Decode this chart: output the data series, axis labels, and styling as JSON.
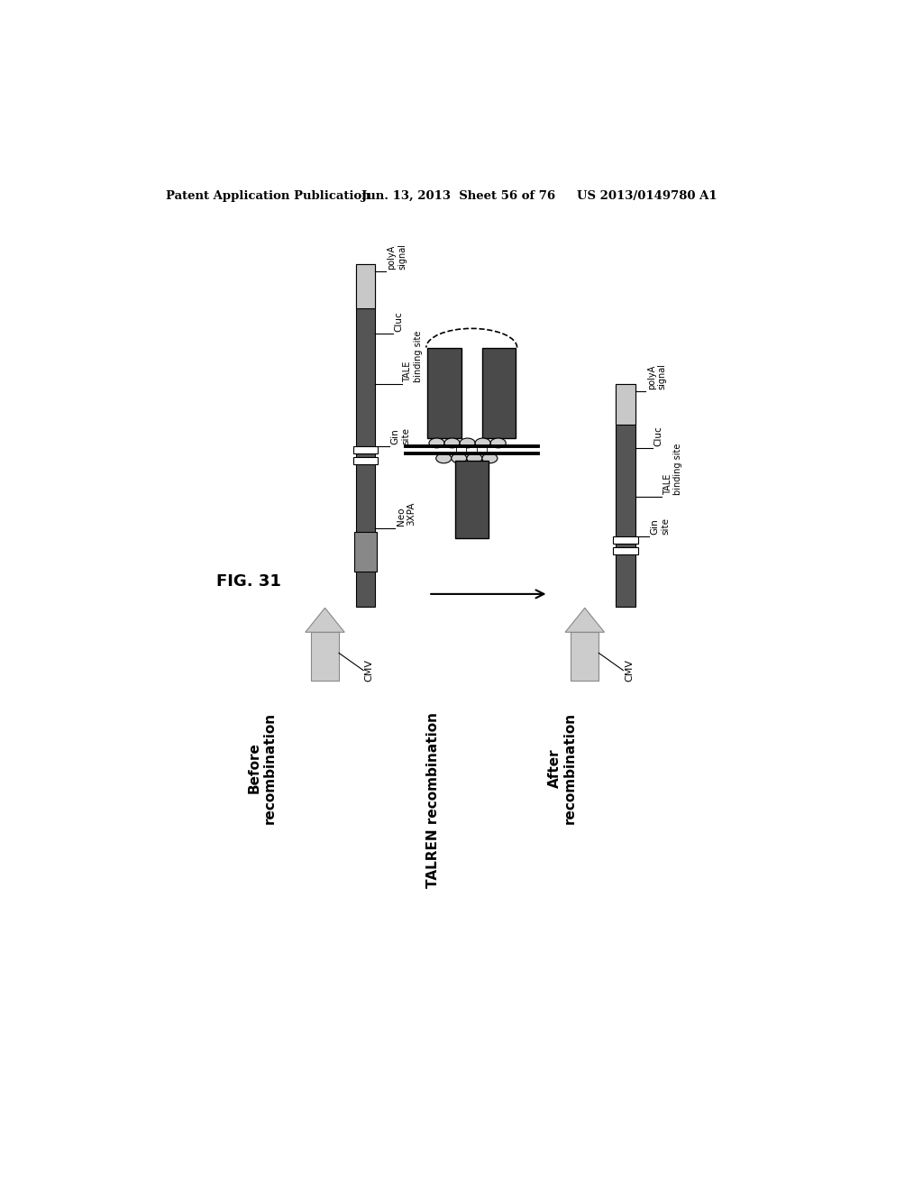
{
  "header_left": "Patent Application Publication",
  "header_mid": "Jun. 13, 2013  Sheet 56 of 76",
  "header_right": "US 2013/0149780 A1",
  "fig_label": "FIG. 31",
  "before_label": "Before\nrecombination",
  "talren_label": "TALREN recombination",
  "after_label": "After\nrecombination",
  "bg_color": "#ffffff",
  "dark_color": "#555555",
  "light_gray": "#c8c8c8",
  "medium_gray": "#888888",
  "arrow_fill": "#cccccc",
  "arrow_edge": "#888888",
  "tale_dark": "#4a4a4a"
}
